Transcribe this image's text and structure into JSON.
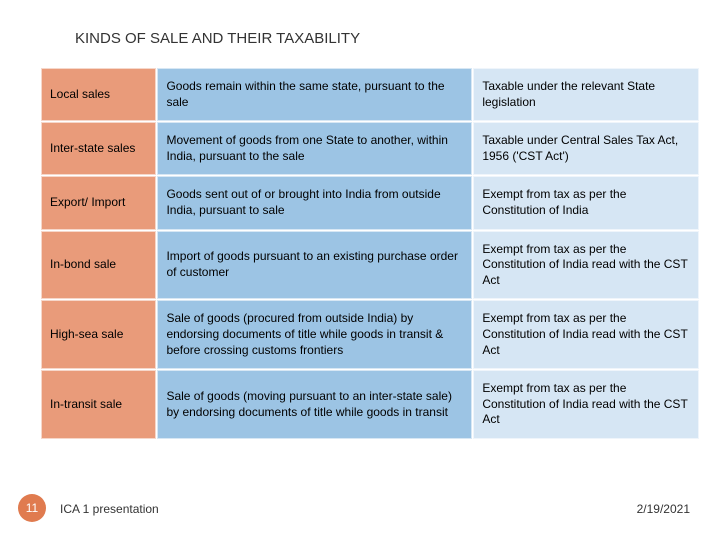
{
  "title": "KINDS OF SALE AND THEIR TAXABILITY",
  "table": {
    "colors": {
      "col1_bg": "#e99b7a",
      "col2_bg": "#9cc4e4",
      "col3_bg": "#d6e6f4",
      "text": "#000000"
    },
    "rows": [
      {
        "kind": "Local sales",
        "desc": "Goods remain within the same state, pursuant to the sale",
        "tax": "Taxable under the relevant State legislation"
      },
      {
        "kind": "Inter-state sales",
        "desc": "Movement of goods from one State to another, within India, pursuant to the sale",
        "tax": "Taxable under Central Sales Tax Act, 1956 ('CST Act')"
      },
      {
        "kind": "Export/ Import",
        "desc": "Goods sent out of or brought into India from outside India, pursuant to sale",
        "tax": "Exempt from tax as per the Constitution of India"
      },
      {
        "kind": "In-bond sale",
        "desc": "Import of goods pursuant to an existing purchase order of customer",
        "tax": "Exempt from tax as per the Constitution of India read with the CST Act"
      },
      {
        "kind": "High-sea sale",
        "desc": "Sale of goods (procured from outside India) by endorsing documents of title while goods in transit & before crossing customs frontiers",
        "tax": "Exempt from tax as per the Constitution of India read with the CST Act"
      },
      {
        "kind": "In-transit sale",
        "desc": "Sale of goods (moving pursuant to an inter-state sale) by endorsing documents of title while goods in transit",
        "tax": "Exempt from tax as per the Constitution of India read with the CST Act"
      }
    ]
  },
  "footer": {
    "page": "11",
    "presentation": "ICA 1 presentation",
    "date": "2/19/2021",
    "badge_bg": "#e07b4f"
  }
}
